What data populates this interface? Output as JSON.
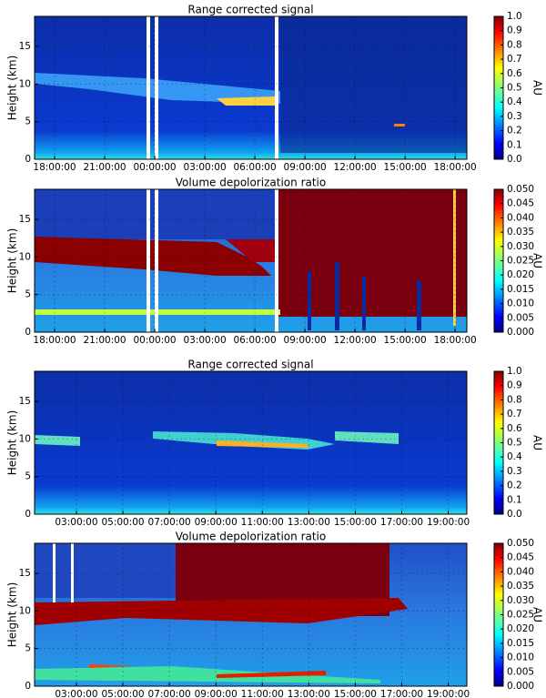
{
  "chart_data": [
    {
      "type": "heatmap",
      "title": "Range corrected signal",
      "ylabel": "Height (km)",
      "colorbar_label": "AU",
      "colormap": "jet",
      "xlim": [
        16.8,
        42.7
      ],
      "xticks": [
        {
          "value": 18,
          "label": "18:00:00"
        },
        {
          "value": 21,
          "label": "21:00:00"
        },
        {
          "value": 24,
          "label": "00:00:00"
        },
        {
          "value": 27,
          "label": "03:00:00"
        },
        {
          "value": 30,
          "label": "06:00:00"
        },
        {
          "value": 33,
          "label": "09:00:00"
        },
        {
          "value": 36,
          "label": "12:00:00"
        },
        {
          "value": 39,
          "label": "15:00:00"
        },
        {
          "value": 42,
          "label": "18:00:00"
        }
      ],
      "ylim": [
        0,
        19
      ],
      "yticks": [
        0,
        5,
        10,
        15
      ],
      "clim": [
        0,
        1
      ],
      "cticks": [
        {
          "value": 0,
          "label": "0.0"
        },
        0.1,
        0.2,
        0.3,
        0.4,
        0.5,
        0.6,
        0.7,
        0.8,
        0.9,
        {
          "value": 1,
          "label": "1.0"
        }
      ],
      "grid": true
    },
    {
      "type": "heatmap",
      "title": "Volume depolorization ratio",
      "ylabel": "Height (km)",
      "colorbar_label": "AU",
      "colormap": "jet",
      "xlim": [
        16.8,
        42.7
      ],
      "xticks": [
        {
          "value": 18,
          "label": "18:00:00"
        },
        {
          "value": 21,
          "label": "21:00:00"
        },
        {
          "value": 24,
          "label": "00:00:00"
        },
        {
          "value": 27,
          "label": "03:00:00"
        },
        {
          "value": 30,
          "label": "06:00:00"
        },
        {
          "value": 33,
          "label": "09:00:00"
        },
        {
          "value": 36,
          "label": "12:00:00"
        },
        {
          "value": 39,
          "label": "15:00:00"
        },
        {
          "value": 42,
          "label": "18:00:00"
        }
      ],
      "ylim": [
        0,
        19
      ],
      "yticks": [
        0,
        5,
        10,
        15
      ],
      "clim": [
        0,
        0.05
      ],
      "cticks": [
        {
          "value": 0,
          "label": "0.000"
        },
        0.005,
        {
          "value": 0.01,
          "label": "0.010"
        },
        0.015,
        {
          "value": 0.02,
          "label": "0.020"
        },
        0.025,
        {
          "value": 0.03,
          "label": "0.030"
        },
        0.035,
        {
          "value": 0.04,
          "label": "0.040"
        },
        0.045,
        {
          "value": 0.05,
          "label": "0.050"
        }
      ],
      "grid": true
    },
    {
      "type": "heatmap",
      "title": "Range corrected signal",
      "ylabel": "Height (km)",
      "colorbar_label": "AU",
      "colormap": "jet",
      "xlim": [
        1.2,
        19.8
      ],
      "xticks": [
        {
          "value": 3,
          "label": "03:00:00"
        },
        {
          "value": 5,
          "label": "05:00:00"
        },
        {
          "value": 7,
          "label": "07:00:00"
        },
        {
          "value": 9,
          "label": "09:00:00"
        },
        {
          "value": 11,
          "label": "11:00:00"
        },
        {
          "value": 13,
          "label": "13:00:00"
        },
        {
          "value": 15,
          "label": "15:00:00"
        },
        {
          "value": 17,
          "label": "17:00:00"
        },
        {
          "value": 19,
          "label": "19:00:00"
        }
      ],
      "ylim": [
        0,
        19
      ],
      "yticks": [
        0,
        5,
        10,
        15
      ],
      "clim": [
        0,
        1
      ],
      "cticks": [
        {
          "value": 0,
          "label": "0.0"
        },
        0.1,
        0.2,
        0.3,
        0.4,
        0.5,
        0.6,
        0.7,
        0.8,
        0.9,
        {
          "value": 1,
          "label": "1.0"
        }
      ],
      "grid": true
    },
    {
      "type": "heatmap",
      "title": "Volume depolorization ratio",
      "ylabel": "Height (km)",
      "colorbar_label": "AU",
      "colormap": "jet",
      "xlim": [
        1.2,
        19.8
      ],
      "xticks": [
        {
          "value": 3,
          "label": "03:00:00"
        },
        {
          "value": 5,
          "label": "05:00:00"
        },
        {
          "value": 7,
          "label": "07:00:00"
        },
        {
          "value": 9,
          "label": "09:00:00"
        },
        {
          "value": 11,
          "label": "11:00:00"
        },
        {
          "value": 13,
          "label": "13:00:00"
        },
        {
          "value": 15,
          "label": "15:00:00"
        },
        {
          "value": 17,
          "label": "17:00:00"
        },
        {
          "value": 19,
          "label": "19:00:00"
        }
      ],
      "ylim": [
        0,
        19
      ],
      "yticks": [
        0,
        5,
        10,
        15
      ],
      "clim": [
        0,
        0.05
      ],
      "cticks": [
        {
          "value": 0,
          "label": "0.000"
        },
        0.005,
        {
          "value": 0.01,
          "label": "0.010"
        },
        0.015,
        {
          "value": 0.02,
          "label": "0.020"
        },
        0.025,
        {
          "value": 0.03,
          "label": "0.030"
        },
        0.035,
        {
          "value": 0.04,
          "label": "0.040"
        },
        0.045,
        {
          "value": 0.05,
          "label": "0.050"
        }
      ],
      "grid": true
    }
  ]
}
